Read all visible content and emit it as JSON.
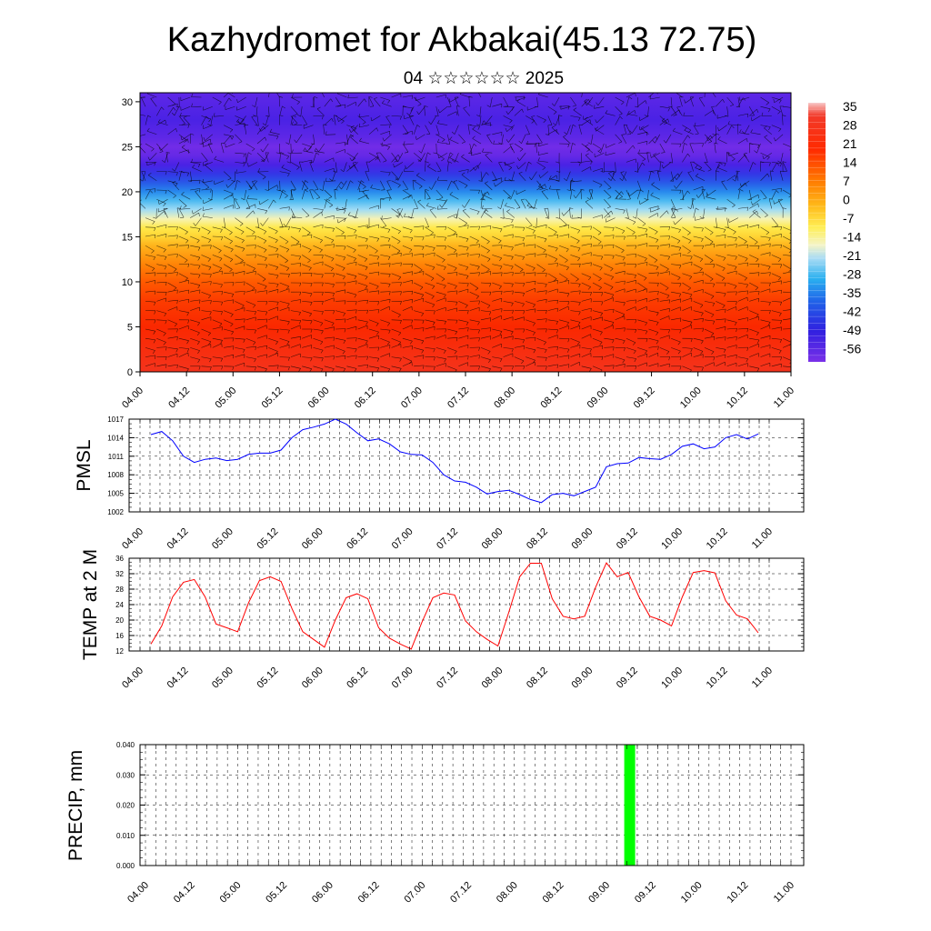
{
  "title": "Kazhydromet for Akbakai(45.13 72.75)",
  "subtitle": "04 ☆☆☆☆☆☆ 2025",
  "time_labels": [
    "04.00",
    "04.12",
    "05.00",
    "05.12",
    "06.00",
    "06.12",
    "07.00",
    "07.12",
    "08.00",
    "08.12",
    "09.00",
    "09.12",
    "10.00",
    "10.12",
    "11.00"
  ],
  "colors": {
    "pmsl_line": "#0000ff",
    "temp_line": "#ff0000",
    "precip_bar": "#00ff00"
  },
  "chart_data": [
    {
      "type": "heatmap",
      "title": "",
      "xlabel": "",
      "ylabel": "",
      "ylim": [
        0,
        31
      ],
      "yticks": [
        0,
        5,
        10,
        15,
        20,
        25,
        30
      ],
      "colorbar_ticks": [
        "35",
        "28",
        "21",
        "14",
        "7",
        "0",
        "-7",
        "-14",
        "-21",
        "-28",
        "-35",
        "-42",
        "-49",
        "-56"
      ],
      "colorbar_range": [
        -60,
        38
      ],
      "profile_levels": [
        0,
        2,
        5,
        8,
        10,
        12,
        14,
        15,
        16,
        17,
        18,
        19,
        20,
        21,
        22,
        23,
        24,
        25,
        26,
        28,
        31
      ],
      "profile_values": [
        26,
        24,
        21,
        18,
        14,
        9,
        3,
        -2,
        -6,
        -12,
        -20,
        -27,
        -34,
        -40,
        -46,
        -52,
        -56,
        -58,
        -55,
        -52,
        -55
      ],
      "overlay": "wind barbs"
    },
    {
      "type": "line",
      "ylabel": "PMSL",
      "ylim": [
        1002,
        1017
      ],
      "yticks": [
        1002,
        1005,
        1008,
        1011,
        1014,
        1017
      ],
      "series": [
        {
          "values": [
            1014.5,
            1015,
            1013.5,
            1011,
            1010,
            1010.5,
            1010.7,
            1010.3,
            1010.5,
            1011.3,
            1011.5,
            1011.5,
            1012,
            1014,
            1015.3,
            1015.7,
            1016.2,
            1017,
            1016.2,
            1014.8,
            1013.5,
            1013.8,
            1013,
            1011.7,
            1011.3,
            1011.2,
            1010,
            1008,
            1007,
            1006.8,
            1006,
            1004.9,
            1005.3,
            1005.5,
            1004.8,
            1004,
            1003.5,
            1004.8,
            1005,
            1004.6,
            1005.3,
            1006,
            1009.3,
            1009.8,
            1009.9,
            1010.8,
            1010.6,
            1010.5,
            1011.3,
            1012.6,
            1013,
            1012.2,
            1012.5,
            1014,
            1014.5,
            1013.8,
            1014.6
          ]
        }
      ]
    },
    {
      "type": "line",
      "ylabel": "TEMP at 2 M",
      "ylim": [
        12,
        36
      ],
      "yticks": [
        12,
        16,
        20,
        24,
        28,
        32,
        36
      ],
      "series": [
        {
          "values": [
            13.8,
            18.5,
            26,
            29.8,
            30.5,
            26,
            19,
            18,
            17,
            24.5,
            30.2,
            31.2,
            30,
            23,
            17,
            15,
            13,
            20,
            25.8,
            26.8,
            25.5,
            18,
            15.3,
            13.8,
            12.5,
            19.5,
            25.8,
            27,
            26.5,
            19.8,
            17,
            15,
            13.3,
            22,
            31.2,
            34.7,
            34.7,
            25.5,
            21,
            20.3,
            21,
            28.5,
            34.8,
            31.2,
            32.3,
            26,
            21,
            20,
            18.5,
            26,
            32.3,
            32.8,
            32.2,
            25,
            21.3,
            20.3,
            16.7
          ]
        }
      ]
    },
    {
      "type": "bar",
      "ylabel": "PRECIP, mm",
      "ylim": [
        0,
        0.04
      ],
      "yticks": [
        "0.000",
        "0.010",
        "0.020",
        "0.030",
        "0.040"
      ],
      "x": [
        42.5
      ],
      "values": [
        0.04
      ]
    }
  ]
}
